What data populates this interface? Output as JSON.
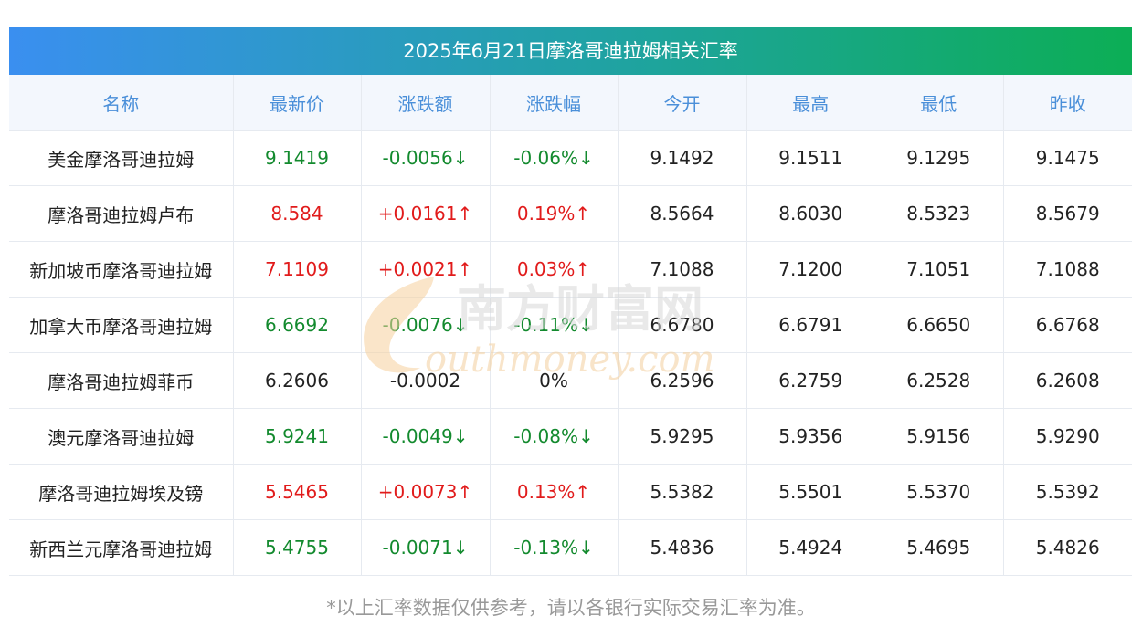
{
  "title": "2025年6月21日摩洛哥迪拉姆相关汇率",
  "headers": [
    "名称",
    "最新价",
    "涨跌额",
    "涨跌幅",
    "今开",
    "最高",
    "最低",
    "昨收"
  ],
  "rows": [
    {
      "name": "美金摩洛哥迪拉姆",
      "latest": "9.1419",
      "change": "-0.0056↓",
      "pct": "-0.06%↓",
      "open": "9.1492",
      "high": "9.1511",
      "low": "9.1295",
      "prev": "9.1475",
      "trend": "down"
    },
    {
      "name": "摩洛哥迪拉姆卢布",
      "latest": "8.584",
      "change": "+0.0161↑",
      "pct": "0.19%↑",
      "open": "8.5664",
      "high": "8.6030",
      "low": "8.5323",
      "prev": "8.5679",
      "trend": "up"
    },
    {
      "name": "新加坡币摩洛哥迪拉姆",
      "latest": "7.1109",
      "change": "+0.0021↑",
      "pct": "0.03%↑",
      "open": "7.1088",
      "high": "7.1200",
      "low": "7.1051",
      "prev": "7.1088",
      "trend": "up"
    },
    {
      "name": "加拿大币摩洛哥迪拉姆",
      "latest": "6.6692",
      "change": "-0.0076↓",
      "pct": "-0.11%↓",
      "open": "6.6780",
      "high": "6.6791",
      "low": "6.6650",
      "prev": "6.6768",
      "trend": "down"
    },
    {
      "name": "摩洛哥迪拉姆菲币",
      "latest": "6.2606",
      "change": "-0.0002",
      "pct": "0%",
      "open": "6.2596",
      "high": "6.2759",
      "low": "6.2528",
      "prev": "6.2608",
      "trend": "flat"
    },
    {
      "name": "澳元摩洛哥迪拉姆",
      "latest": "5.9241",
      "change": "-0.0049↓",
      "pct": "-0.08%↓",
      "open": "5.9295",
      "high": "5.9356",
      "low": "5.9156",
      "prev": "5.9290",
      "trend": "down"
    },
    {
      "name": "摩洛哥迪拉姆埃及镑",
      "latest": "5.5465",
      "change": "+0.0073↑",
      "pct": "0.13%↑",
      "open": "5.5382",
      "high": "5.5501",
      "low": "5.5370",
      "prev": "5.5392",
      "trend": "up"
    },
    {
      "name": "新西兰元摩洛哥迪拉姆",
      "latest": "5.4755",
      "change": "-0.0071↓",
      "pct": "-0.13%↓",
      "open": "5.4836",
      "high": "5.4924",
      "low": "5.4695",
      "prev": "5.4826",
      "trend": "down"
    }
  ],
  "watermark": {
    "cn": "南方财富网",
    "en": "outhmoney.com"
  },
  "footnote": "*以上汇率数据仅供参考，请以各银行实际交易汇率为准。",
  "colors": {
    "up": "#e11b1b",
    "down": "#138a2e",
    "header_text": "#4a8fd9",
    "title_start": "#3a8ff0",
    "title_end": "#0cae55"
  }
}
